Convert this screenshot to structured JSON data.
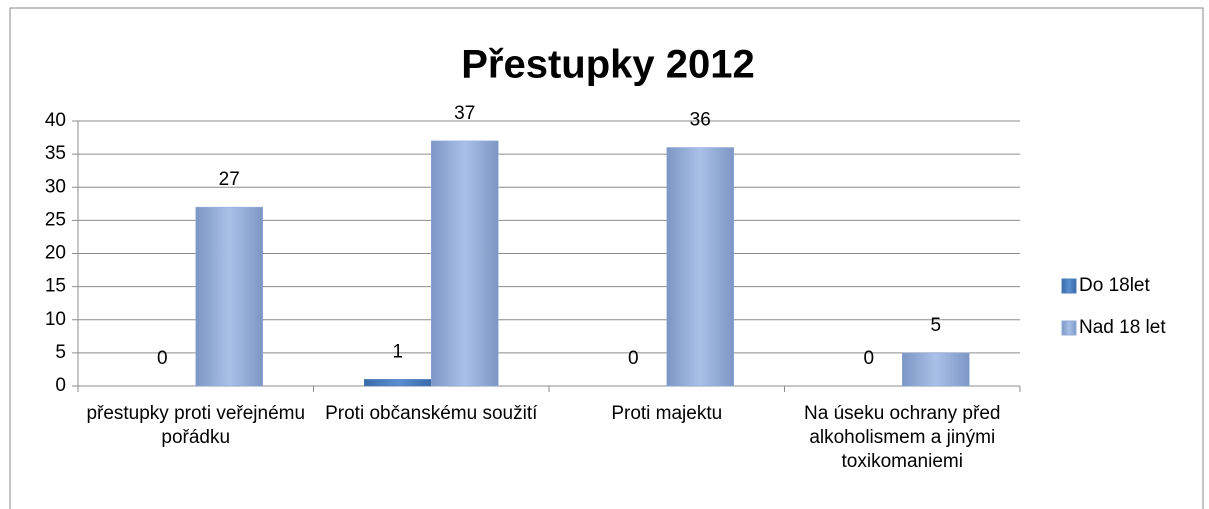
{
  "chart_data": {
    "type": "bar",
    "title": "Přestupky 2012",
    "categories": [
      "přestupky proti veřejnému pořádku",
      "Proti občanskému soužití",
      "Proti majektu",
      "Na úseku ochrany před alkoholismem a jinými toxikomaniemi"
    ],
    "series": [
      {
        "name": "Do 18let",
        "color": "#4a7ebb",
        "values": [
          0,
          1,
          0,
          0
        ]
      },
      {
        "name": "Nad 18 let",
        "color": "#8faadc",
        "values": [
          27,
          37,
          36,
          5
        ]
      }
    ],
    "ylim": [
      0,
      40
    ],
    "yticks": [
      0,
      5,
      10,
      15,
      20,
      25,
      30,
      35,
      40
    ],
    "grid": true,
    "legend": "right"
  }
}
